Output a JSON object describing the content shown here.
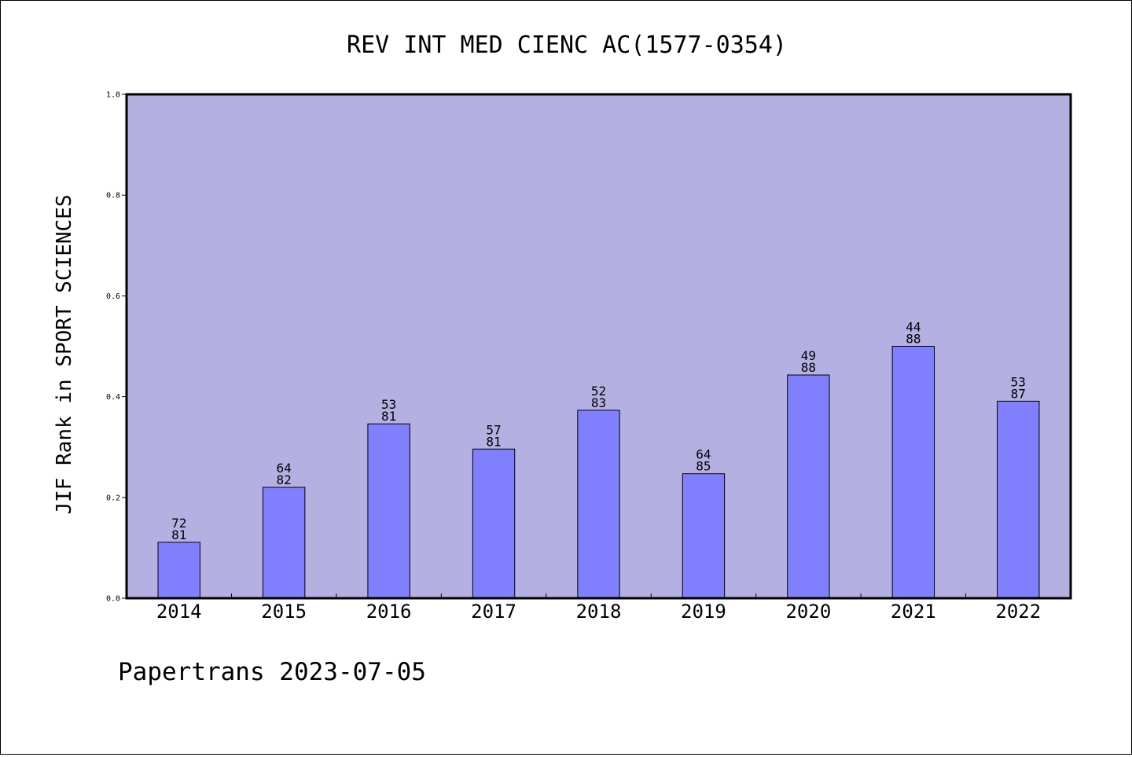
{
  "chart_data": {
    "type": "bar",
    "title": "REV INT MED CIENC AC(1577-0354)",
    "ylabel": "JIF Rank in SPORT SCIENCES",
    "xlabel": "",
    "ylim": [
      0,
      1.0
    ],
    "yticks": [
      "0.0",
      "0.2",
      "0.4",
      "0.6",
      "0.8",
      "1.0"
    ],
    "grid": false,
    "categories": [
      "2014",
      "2015",
      "2016",
      "2017",
      "2018",
      "2019",
      "2020",
      "2021",
      "2022"
    ],
    "values": [
      0.111,
      0.22,
      0.346,
      0.296,
      0.373,
      0.247,
      0.443,
      0.5,
      0.391
    ],
    "rank_labels": [
      [
        "72",
        "81"
      ],
      [
        "64",
        "82"
      ],
      [
        "53",
        "81"
      ],
      [
        "57",
        "81"
      ],
      [
        "52",
        "83"
      ],
      [
        "64",
        "85"
      ],
      [
        "49",
        "88"
      ],
      [
        "44",
        "88"
      ],
      [
        "53",
        "87"
      ]
    ],
    "colors": {
      "plot_background": "#b5b0e2",
      "bar_fill": "#8080ff",
      "bar_stroke": "#000000"
    }
  },
  "footer": {
    "text": "Papertrans 2023-07-05"
  }
}
